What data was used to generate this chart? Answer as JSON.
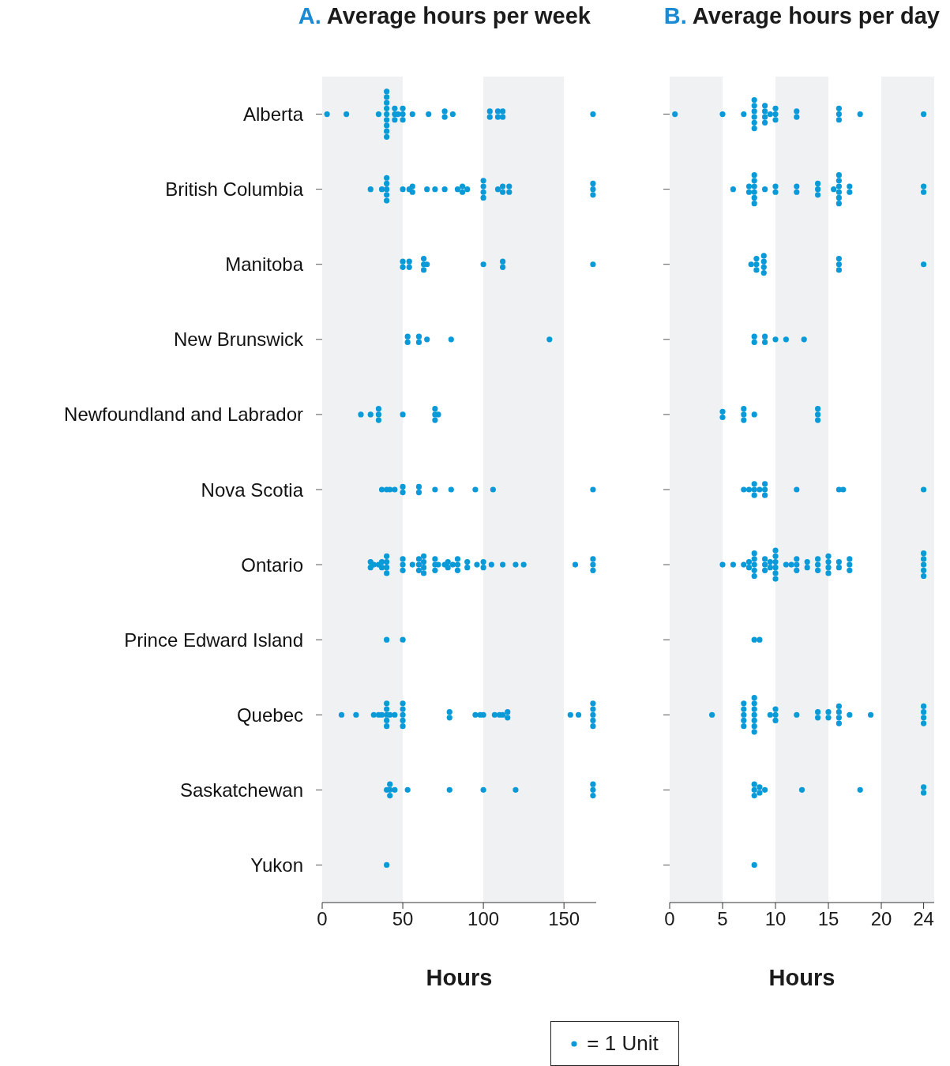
{
  "chart_data": [
    {
      "type": "scatter",
      "title": "A. Average hours per week",
      "xlabel": "Hours",
      "orientation": "horizontal",
      "marker": "circle",
      "categories": [
        "Alberta",
        "British Columbia",
        "Manitoba",
        "New Brunswick",
        "Newfoundland and Labrador",
        "Nova Scotia",
        "Ontario",
        "Prince Edward Island",
        "Quebec",
        "Saskatchewan",
        "Yukon"
      ],
      "xlim": [
        0,
        170
      ],
      "xticks": [
        0,
        50,
        100,
        150
      ],
      "bands": [
        {
          "axis": "x",
          "from": 0,
          "to": 50,
          "color": "#f0f1f3"
        },
        {
          "axis": "x",
          "from": 100,
          "to": 150,
          "color": "#f0f1f3"
        }
      ],
      "series": [
        {
          "color": "#0a9ad8",
          "x": [
            "Alberta",
            "Alberta",
            "Alberta",
            "Alberta",
            "Alberta",
            "Alberta",
            "Alberta",
            "Alberta",
            "Alberta",
            "Alberta",
            "Alberta",
            "Alberta",
            "Alberta",
            "Alberta",
            "Alberta",
            "Alberta",
            "Alberta",
            "Alberta",
            "Alberta",
            "Alberta",
            "Alberta",
            "Alberta",
            "Alberta",
            "Alberta",
            "Alberta",
            "Alberta",
            "Alberta",
            "Alberta",
            "Alberta",
            "Alberta",
            "Alberta",
            "British Columbia",
            "British Columbia",
            "British Columbia",
            "British Columbia",
            "British Columbia",
            "British Columbia",
            "British Columbia",
            "British Columbia",
            "British Columbia",
            "British Columbia",
            "British Columbia",
            "British Columbia",
            "British Columbia",
            "British Columbia",
            "British Columbia",
            "British Columbia",
            "British Columbia",
            "British Columbia",
            "British Columbia",
            "British Columbia",
            "British Columbia",
            "British Columbia",
            "British Columbia",
            "British Columbia",
            "British Columbia",
            "British Columbia",
            "British Columbia",
            "British Columbia",
            "British Columbia",
            "British Columbia",
            "Manitoba",
            "Manitoba",
            "Manitoba",
            "Manitoba",
            "Manitoba",
            "Manitoba",
            "Manitoba",
            "Manitoba",
            "Manitoba",
            "Manitoba",
            "Manitoba",
            "Manitoba",
            "New Brunswick",
            "New Brunswick",
            "New Brunswick",
            "New Brunswick",
            "New Brunswick",
            "New Brunswick",
            "New Brunswick",
            "Newfoundland and Labrador",
            "Newfoundland and Labrador",
            "Newfoundland and Labrador",
            "Newfoundland and Labrador",
            "Newfoundland and Labrador",
            "Newfoundland and Labrador",
            "Newfoundland and Labrador",
            "Newfoundland and Labrador",
            "Newfoundland and Labrador",
            "Newfoundland and Labrador",
            "Nova Scotia",
            "Nova Scotia",
            "Nova Scotia",
            "Nova Scotia",
            "Nova Scotia",
            "Nova Scotia",
            "Nova Scotia",
            "Nova Scotia",
            "Nova Scotia",
            "Nova Scotia",
            "Nova Scotia",
            "Nova Scotia",
            "Nova Scotia",
            "Ontario",
            "Ontario",
            "Ontario",
            "Ontario",
            "Ontario",
            "Ontario",
            "Ontario",
            "Ontario",
            "Ontario",
            "Ontario",
            "Ontario",
            "Ontario",
            "Ontario",
            "Ontario",
            "Ontario",
            "Ontario",
            "Ontario",
            "Ontario",
            "Ontario",
            "Ontario",
            "Ontario",
            "Ontario",
            "Ontario",
            "Ontario",
            "Ontario",
            "Ontario",
            "Ontario",
            "Ontario",
            "Ontario",
            "Ontario",
            "Ontario",
            "Ontario",
            "Ontario",
            "Ontario",
            "Ontario",
            "Ontario",
            "Ontario",
            "Ontario",
            "Ontario",
            "Ontario",
            "Ontario",
            "Ontario",
            "Ontario",
            "Ontario",
            "Ontario",
            "Prince Edward Island",
            "Prince Edward Island",
            "Quebec",
            "Quebec",
            "Quebec",
            "Quebec",
            "Quebec",
            "Quebec",
            "Quebec",
            "Quebec",
            "Quebec",
            "Quebec",
            "Quebec",
            "Quebec",
            "Quebec",
            "Quebec",
            "Quebec",
            "Quebec",
            "Quebec",
            "Quebec",
            "Quebec",
            "Quebec",
            "Quebec",
            "Quebec",
            "Quebec",
            "Quebec",
            "Quebec",
            "Quebec",
            "Quebec",
            "Quebec",
            "Quebec",
            "Quebec",
            "Quebec",
            "Quebec",
            "Quebec",
            "Quebec",
            "Saskatchewan",
            "Saskatchewan",
            "Saskatchewan",
            "Saskatchewan",
            "Saskatchewan",
            "Saskatchewan",
            "Saskatchewan",
            "Saskatchewan",
            "Saskatchewan",
            "Saskatchewan",
            "Saskatchewan",
            "Saskatchewan",
            "Yukon"
          ],
          "values": [
            3,
            15,
            35,
            40,
            40,
            40,
            40,
            40,
            40,
            40,
            40,
            40,
            45,
            45,
            45,
            47,
            50,
            50,
            50,
            56,
            66,
            76,
            76,
            81,
            104,
            104,
            109,
            109,
            112,
            112,
            168,
            30,
            37,
            40,
            40,
            40,
            40,
            40,
            50,
            54,
            56,
            56,
            65,
            70,
            76,
            84,
            87,
            87,
            90,
            100,
            100,
            100,
            100,
            109,
            112,
            112,
            116,
            116,
            168,
            168,
            168,
            50,
            50,
            54,
            54,
            63,
            63,
            63,
            65,
            100,
            112,
            112,
            168,
            53,
            53,
            60,
            60,
            65,
            80,
            141,
            24,
            30,
            35,
            35,
            35,
            50,
            70,
            70,
            70,
            72,
            37,
            40,
            42,
            45,
            50,
            50,
            60,
            60,
            70,
            80,
            95,
            106,
            168,
            30,
            30,
            32,
            35,
            37,
            37,
            40,
            40,
            40,
            40,
            50,
            50,
            50,
            56,
            60,
            60,
            60,
            63,
            63,
            63,
            63,
            70,
            70,
            70,
            72,
            76,
            78,
            78,
            81,
            84,
            84,
            84,
            90,
            90,
            96,
            100,
            100,
            105,
            112,
            120,
            125,
            157,
            168,
            168,
            168,
            40,
            50,
            12,
            21,
            32,
            35,
            37,
            40,
            40,
            40,
            40,
            40,
            42,
            45,
            50,
            50,
            50,
            50,
            50,
            79,
            79,
            95,
            98,
            100,
            107,
            110,
            112,
            115,
            115,
            154,
            159,
            168,
            168,
            168,
            168,
            168,
            40,
            42,
            42,
            42,
            45,
            53,
            79,
            100,
            120,
            168,
            168,
            168,
            40
          ]
        }
      ]
    },
    {
      "type": "scatter",
      "title": "B. Average hours per day",
      "xlabel": "Hours",
      "orientation": "horizontal",
      "marker": "circle",
      "tick_labels": "x",
      "legend": "bottom",
      "categories": [
        "Alberta",
        "British Columbia",
        "Manitoba",
        "New Brunswick",
        "Newfoundland and Labrador",
        "Nova Scotia",
        "Ontario",
        "Prince Edward Island",
        "Quebec",
        "Saskatchewan",
        "Yukon"
      ],
      "xlim": [
        0,
        25
      ],
      "xticks": [
        0,
        5,
        10,
        15,
        20,
        24
      ],
      "bands": [
        {
          "axis": "x",
          "from": 0,
          "to": 5,
          "color": "#f0f1f3"
        },
        {
          "axis": "x",
          "from": 10,
          "to": 15,
          "color": "#f0f1f3"
        },
        {
          "axis": "x",
          "from": 20,
          "to": 25,
          "color": "#f0f1f3"
        }
      ],
      "series": [
        {
          "name": "= 1 Unit",
          "color": "#0a9ad8",
          "x": [
            "Alberta",
            "Alberta",
            "Alberta",
            "Alberta",
            "Alberta",
            "Alberta",
            "Alberta",
            "Alberta",
            "Alberta",
            "Alberta",
            "Alberta",
            "Alberta",
            "Alberta",
            "Alberta",
            "Alberta",
            "Alberta",
            "Alberta",
            "Alberta",
            "Alberta",
            "Alberta",
            "Alberta",
            "Alberta",
            "Alberta",
            "Alberta",
            "British Columbia",
            "British Columbia",
            "British Columbia",
            "British Columbia",
            "British Columbia",
            "British Columbia",
            "British Columbia",
            "British Columbia",
            "British Columbia",
            "British Columbia",
            "British Columbia",
            "British Columbia",
            "British Columbia",
            "British Columbia",
            "British Columbia",
            "British Columbia",
            "British Columbia",
            "British Columbia",
            "British Columbia",
            "British Columbia",
            "British Columbia",
            "British Columbia",
            "British Columbia",
            "British Columbia",
            "British Columbia",
            "British Columbia",
            "British Columbia",
            "British Columbia",
            "Manitoba",
            "Manitoba",
            "Manitoba",
            "Manitoba",
            "Manitoba",
            "Manitoba",
            "Manitoba",
            "Manitoba",
            "Manitoba",
            "Manitoba",
            "Manitoba",
            "Manitoba",
            "New Brunswick",
            "New Brunswick",
            "New Brunswick",
            "New Brunswick",
            "New Brunswick",
            "New Brunswick",
            "New Brunswick",
            "Newfoundland and Labrador",
            "Newfoundland and Labrador",
            "Newfoundland and Labrador",
            "Newfoundland and Labrador",
            "Newfoundland and Labrador",
            "Newfoundland and Labrador",
            "Newfoundland and Labrador",
            "Newfoundland and Labrador",
            "Newfoundland and Labrador",
            "Nova Scotia",
            "Nova Scotia",
            "Nova Scotia",
            "Nova Scotia",
            "Nova Scotia",
            "Nova Scotia",
            "Nova Scotia",
            "Nova Scotia",
            "Nova Scotia",
            "Nova Scotia",
            "Nova Scotia",
            "Nova Scotia",
            "Nova Scotia",
            "Ontario",
            "Ontario",
            "Ontario",
            "Ontario",
            "Ontario",
            "Ontario",
            "Ontario",
            "Ontario",
            "Ontario",
            "Ontario",
            "Ontario",
            "Ontario",
            "Ontario",
            "Ontario",
            "Ontario",
            "Ontario",
            "Ontario",
            "Ontario",
            "Ontario",
            "Ontario",
            "Ontario",
            "Ontario",
            "Ontario",
            "Ontario",
            "Ontario",
            "Ontario",
            "Ontario",
            "Ontario",
            "Ontario",
            "Ontario",
            "Ontario",
            "Ontario",
            "Ontario",
            "Ontario",
            "Ontario",
            "Ontario",
            "Ontario",
            "Ontario",
            "Ontario",
            "Ontario",
            "Ontario",
            "Ontario",
            "Ontario",
            "Ontario",
            "Ontario",
            "Prince Edward Island",
            "Prince Edward Island",
            "Quebec",
            "Quebec",
            "Quebec",
            "Quebec",
            "Quebec",
            "Quebec",
            "Quebec",
            "Quebec",
            "Quebec",
            "Quebec",
            "Quebec",
            "Quebec",
            "Quebec",
            "Quebec",
            "Quebec",
            "Quebec",
            "Quebec",
            "Quebec",
            "Quebec",
            "Quebec",
            "Quebec",
            "Quebec",
            "Quebec",
            "Quebec",
            "Quebec",
            "Quebec",
            "Quebec",
            "Quebec",
            "Quebec",
            "Quebec",
            "Quebec",
            "Quebec",
            "Saskatchewan",
            "Saskatchewan",
            "Saskatchewan",
            "Saskatchewan",
            "Saskatchewan",
            "Saskatchewan",
            "Saskatchewan",
            "Saskatchewan",
            "Saskatchewan",
            "Saskatchewan",
            "Yukon"
          ],
          "values": [
            0.5,
            5,
            7,
            8,
            8,
            8,
            8,
            8,
            8,
            9,
            9,
            9,
            9,
            9.5,
            10,
            10,
            10,
            12,
            12,
            16,
            16,
            16,
            18,
            24,
            6,
            7.5,
            7.5,
            8,
            8,
            8,
            8,
            8,
            8,
            9,
            10,
            10,
            12,
            12,
            14,
            14,
            14,
            15.5,
            16,
            16,
            16,
            16,
            16,
            16,
            17,
            17,
            24,
            24,
            7.7,
            8.2,
            8.2,
            8.2,
            8.9,
            8.9,
            8.9,
            8.9,
            16,
            16,
            16,
            24,
            8,
            8,
            9,
            9,
            10,
            11,
            12.7,
            5,
            5,
            7,
            7,
            7,
            8,
            14,
            14,
            14,
            7,
            7.5,
            8,
            8,
            8,
            8.5,
            9,
            9,
            9,
            12,
            16,
            16.4,
            24,
            5,
            6,
            7,
            7.5,
            7.5,
            8,
            8,
            8,
            8,
            8,
            9,
            9,
            9,
            9.5,
            9.5,
            10,
            10,
            10,
            10,
            10,
            10,
            11,
            11.5,
            12,
            12,
            12,
            13,
            13,
            14,
            14,
            14,
            15,
            15,
            15,
            15,
            16,
            16,
            17,
            17,
            17,
            24,
            24,
            24,
            24,
            24,
            8,
            8.5,
            4,
            7,
            7,
            7,
            7,
            7,
            8,
            8,
            8,
            8,
            8,
            8,
            8,
            9.5,
            10,
            10,
            10,
            12,
            14,
            14,
            15,
            15,
            16,
            16,
            16,
            16,
            17,
            19,
            24,
            24,
            24,
            24,
            8,
            8,
            8,
            8.5,
            8.5,
            9,
            12.5,
            18,
            24,
            24,
            8
          ]
        }
      ]
    }
  ]
}
